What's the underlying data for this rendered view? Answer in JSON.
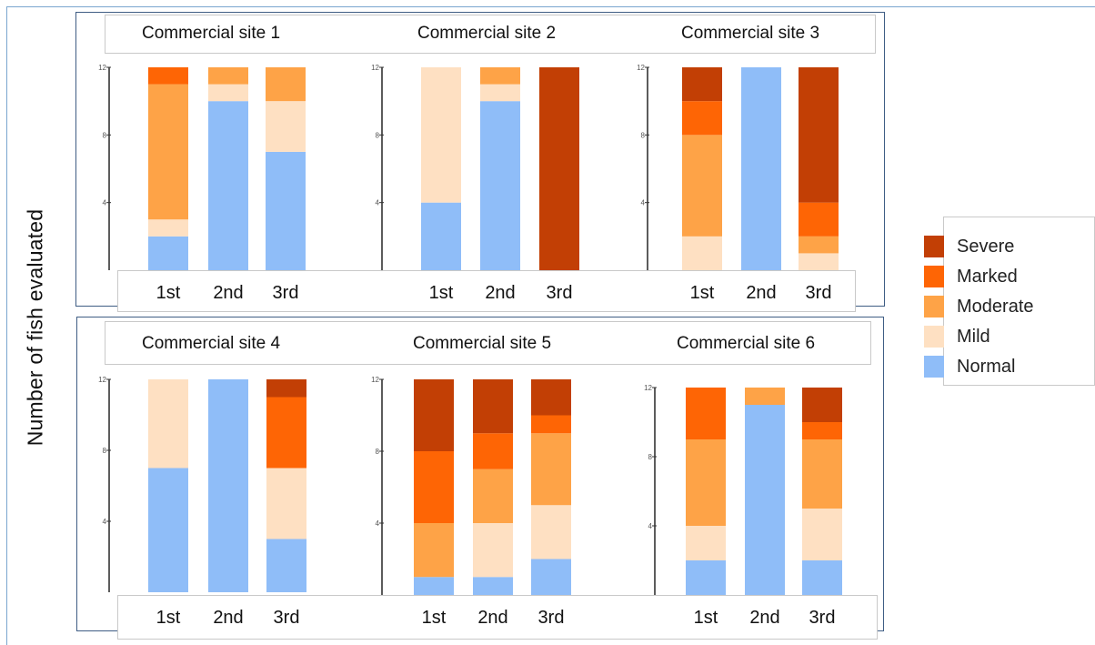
{
  "chart_data": {
    "type": "bar",
    "stacked": true,
    "ylabel": "Number of fish evaluated",
    "ylim": [
      0,
      12
    ],
    "yticks": [
      4,
      8,
      12
    ],
    "legend_position": "right",
    "categories": [
      "1st",
      "2nd",
      "3rd"
    ],
    "severity_levels": [
      {
        "name": "Severe",
        "color": "#c23f05"
      },
      {
        "name": "Marked",
        "color": "#fe6505"
      },
      {
        "name": "Moderate",
        "color": "#fea347"
      },
      {
        "name": "Mild",
        "color": "#fee0c2"
      },
      {
        "name": "Normal",
        "color": "#8fbdf8"
      }
    ],
    "panels": [
      {
        "title": "Commercial site 1",
        "bars": [
          {
            "category": "1st",
            "Normal": 2,
            "Mild": 1,
            "Moderate": 8,
            "Marked": 1,
            "Severe": 0
          },
          {
            "category": "2nd",
            "Normal": 10,
            "Mild": 1,
            "Moderate": 1,
            "Marked": 0,
            "Severe": 0
          },
          {
            "category": "3rd",
            "Normal": 7,
            "Mild": 3,
            "Moderate": 2,
            "Marked": 0,
            "Severe": 0
          }
        ]
      },
      {
        "title": "Commercial site 2",
        "bars": [
          {
            "category": "1st",
            "Normal": 4,
            "Mild": 8,
            "Moderate": 0,
            "Marked": 0,
            "Severe": 0
          },
          {
            "category": "2nd",
            "Normal": 10,
            "Mild": 1,
            "Moderate": 1,
            "Marked": 0,
            "Severe": 0
          },
          {
            "category": "3rd",
            "Normal": 0,
            "Mild": 0,
            "Moderate": 0,
            "Marked": 0,
            "Severe": 12
          }
        ]
      },
      {
        "title": "Commercial site 3",
        "bars": [
          {
            "category": "1st",
            "Normal": 0,
            "Mild": 2,
            "Moderate": 6,
            "Marked": 2,
            "Severe": 2
          },
          {
            "category": "2nd",
            "Normal": 12,
            "Mild": 0,
            "Moderate": 0,
            "Marked": 0,
            "Severe": 0
          },
          {
            "category": "3rd",
            "Normal": 0,
            "Mild": 1,
            "Moderate": 1,
            "Marked": 2,
            "Severe": 8
          }
        ]
      },
      {
        "title": "Commercial site 4",
        "bars": [
          {
            "category": "1st",
            "Normal": 7,
            "Mild": 5,
            "Moderate": 0,
            "Marked": 0,
            "Severe": 0
          },
          {
            "category": "2nd",
            "Normal": 12,
            "Mild": 0,
            "Moderate": 0,
            "Marked": 0,
            "Severe": 0
          },
          {
            "category": "3rd",
            "Normal": 3,
            "Mild": 4,
            "Moderate": 0,
            "Marked": 4,
            "Severe": 1
          }
        ]
      },
      {
        "title": "Commercial site 5",
        "bars": [
          {
            "category": "1st",
            "Normal": 1,
            "Mild": 0,
            "Moderate": 3,
            "Marked": 4,
            "Severe": 4
          },
          {
            "category": "2nd",
            "Normal": 1,
            "Mild": 3,
            "Moderate": 3,
            "Marked": 2,
            "Severe": 3
          },
          {
            "category": "3rd",
            "Normal": 2,
            "Mild": 3,
            "Moderate": 4,
            "Marked": 1,
            "Severe": 2
          }
        ]
      },
      {
        "title": "Commercial site 6",
        "bars": [
          {
            "category": "1st",
            "Normal": 2,
            "Mild": 2,
            "Moderate": 5,
            "Marked": 3,
            "Severe": 0
          },
          {
            "category": "2nd",
            "Normal": 11,
            "Mild": 0,
            "Moderate": 1,
            "Marked": 0,
            "Severe": 0
          },
          {
            "category": "3rd",
            "Normal": 2,
            "Mild": 3,
            "Moderate": 4,
            "Marked": 1,
            "Severe": 2
          }
        ]
      }
    ]
  }
}
